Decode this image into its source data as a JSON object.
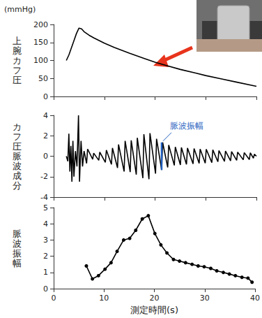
{
  "chart_data": [
    {
      "type": "line",
      "ylabel": "上腕カフ圧",
      "y_unit": "(mmHg)",
      "color": "#000000",
      "x": [
        2.5,
        3,
        3.5,
        4,
        4.5,
        5,
        5.5,
        6,
        7,
        8,
        10,
        12,
        15,
        18,
        20,
        22,
        25,
        28,
        30,
        33,
        36,
        40
      ],
      "values": [
        100,
        115,
        135,
        155,
        175,
        190,
        188,
        180,
        170,
        162,
        148,
        136,
        120,
        105,
        95,
        87,
        75,
        65,
        58,
        49,
        40,
        28
      ],
      "xlim": [
        0,
        40
      ],
      "xticks": [
        0,
        10,
        20,
        30,
        40
      ],
      "ylim": [
        0,
        200
      ],
      "yticks": [
        0,
        50,
        100,
        150,
        200
      ],
      "tick_labels": "y",
      "grid": false
    },
    {
      "type": "line",
      "ylabel": "カフ圧脈波成分",
      "color": "#000000",
      "x": [
        2.5,
        2.8,
        3,
        3.2,
        3.4,
        3.6,
        3.8,
        4,
        4.3,
        4.6,
        4.9,
        5.1,
        5.4,
        5.7,
        6,
        6.5,
        6.7,
        7.7,
        7.9,
        8.9,
        9.1,
        10.2,
        10.4,
        11.4,
        11.6,
        12.6,
        12.8,
        13.9,
        14.1,
        15.1,
        15.3,
        16.3,
        16.5,
        17.6,
        17.8,
        18.8,
        19,
        20.1,
        20.3,
        21.3,
        21.5,
        22.5,
        22.7,
        23.8,
        24,
        25,
        25.2,
        26.2,
        26.4,
        27.5,
        27.7,
        28.7,
        28.9,
        29.9,
        30.1,
        31.2,
        31.4,
        32.4,
        32.6,
        33.7,
        33.9,
        34.9,
        35.1,
        36.1,
        36.3,
        37.4,
        37.6,
        38.6,
        38.8,
        39.4,
        39.6,
        40
      ],
      "values": [
        0,
        -0.5,
        2.2,
        -1.5,
        1,
        -2.5,
        1.5,
        -2,
        0.5,
        -1,
        4,
        -2.5,
        1.5,
        -1,
        0.5,
        -0.7,
        0.7,
        -0.3,
        0.3,
        -0.4,
        0.4,
        -0.6,
        0.6,
        -0.8,
        0.8,
        -1.15,
        1.15,
        -1.5,
        1.5,
        -1.55,
        1.55,
        -1.8,
        1.8,
        -2.15,
        2.15,
        -2.25,
        2.25,
        -1.7,
        1.7,
        -1.35,
        1.35,
        -1.1,
        1.1,
        -0.9,
        0.9,
        -0.85,
        0.85,
        -0.8,
        0.8,
        -0.75,
        0.75,
        -0.7,
        0.7,
        -0.68,
        0.68,
        -0.62,
        0.62,
        -0.55,
        0.55,
        -0.5,
        0.5,
        -0.45,
        0.45,
        -0.4,
        0.4,
        -0.35,
        0.35,
        -0.33,
        0.33,
        -0.2,
        0.2,
        0
      ],
      "xlim": [
        0,
        40
      ],
      "xticks": [
        0,
        10,
        20,
        30,
        40
      ],
      "ylim": [
        -4,
        4
      ],
      "yticks": [
        -4,
        -2,
        0,
        2,
        4
      ],
      "tick_labels": "y",
      "grid": false,
      "annotation": {
        "text": "脈波振幅",
        "x": 21.3,
        "y": [
          -1.35,
          1.35
        ],
        "color": "#1f5fbf"
      }
    },
    {
      "type": "line",
      "ylabel": "脈波振幅",
      "xlabel": "測定時間(s)",
      "color": "#000000",
      "marker": "circle",
      "x": [
        6.5,
        7.7,
        8.9,
        10.2,
        11.4,
        12.6,
        13.9,
        15.1,
        16.3,
        17.6,
        18.8,
        20.1,
        21.3,
        22.5,
        23.8,
        25,
        26.2,
        27.5,
        28.7,
        29.9,
        31.2,
        32.4,
        33.7,
        34.9,
        36.1,
        37.4,
        38.6,
        39.4
      ],
      "values": [
        1.4,
        0.6,
        0.8,
        1.2,
        1.6,
        2.3,
        3.0,
        3.1,
        3.6,
        4.3,
        4.5,
        3.4,
        2.7,
        2.2,
        1.8,
        1.7,
        1.6,
        1.5,
        1.4,
        1.35,
        1.25,
        1.1,
        1.0,
        0.9,
        0.8,
        0.7,
        0.65,
        0.4
      ],
      "xlim": [
        0,
        40
      ],
      "xticks": [
        0,
        10,
        20,
        30,
        40
      ],
      "ylim": [
        0,
        5
      ],
      "yticks": [
        0,
        1,
        2,
        3,
        4,
        5
      ],
      "grid": false
    }
  ]
}
